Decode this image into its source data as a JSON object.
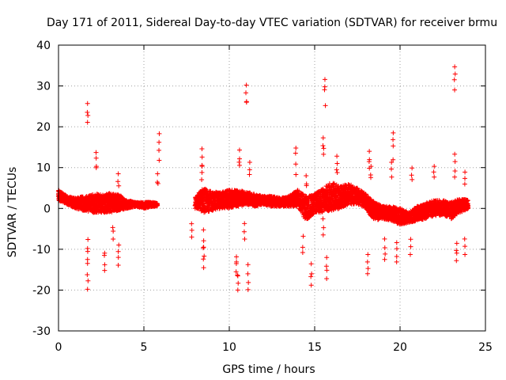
{
  "chart_data": {
    "type": "scatter",
    "title": "Day 171 of 2011, Sidereal Day-to-day VTEC variation (SDTVAR) for receiver brmu",
    "xlabel": "GPS time / hours",
    "ylabel": "SDTVAR / TECUs",
    "xlim": [
      0,
      25
    ],
    "ylim": [
      -30,
      40
    ],
    "xticks": [
      0,
      5,
      10,
      15,
      20,
      25
    ],
    "yticks": [
      -30,
      -20,
      -10,
      0,
      10,
      20,
      30,
      40
    ],
    "xtick_labels": [
      "0",
      "5",
      "10",
      "15",
      "20",
      "25"
    ],
    "ytick_labels": [
      "-30",
      "-20",
      "-10",
      "0",
      "10",
      "20",
      "30",
      "40"
    ],
    "grid": true,
    "marker": "+",
    "color": "#ff0000",
    "series": [
      {
        "name": "SDTVAR",
        "band": [
          [
            0.0,
            2.0,
            4.5
          ],
          [
            0.5,
            1.0,
            3.0
          ],
          [
            1.0,
            0.0,
            2.5
          ],
          [
            1.5,
            -0.5,
            3.0
          ],
          [
            2.0,
            -1.0,
            3.5
          ],
          [
            2.5,
            -1.0,
            3.5
          ],
          [
            3.0,
            -1.0,
            3.8
          ],
          [
            3.5,
            -0.5,
            3.5
          ],
          [
            4.0,
            0.0,
            2.0
          ],
          [
            4.5,
            0.5,
            1.5
          ],
          [
            5.0,
            0.0,
            1.5
          ],
          [
            5.5,
            0.5,
            1.5
          ],
          [
            5.8,
            0.5,
            1.2
          ],
          [
            8.0,
            0.0,
            3.0
          ],
          [
            8.5,
            -1.0,
            5.0
          ],
          [
            9.0,
            -0.5,
            4.0
          ],
          [
            9.5,
            0.0,
            4.0
          ],
          [
            10.0,
            0.0,
            4.5
          ],
          [
            10.5,
            0.5,
            4.5
          ],
          [
            11.0,
            1.0,
            4.0
          ],
          [
            11.5,
            0.5,
            3.5
          ],
          [
            12.0,
            1.0,
            3.0
          ],
          [
            12.5,
            0.5,
            3.0
          ],
          [
            13.0,
            0.5,
            2.5
          ],
          [
            13.5,
            0.5,
            3.0
          ],
          [
            14.0,
            0.5,
            4.5
          ],
          [
            14.5,
            -3.0,
            3.0
          ],
          [
            15.0,
            -1.0,
            3.5
          ],
          [
            15.5,
            -1.0,
            5.0
          ],
          [
            16.0,
            -0.5,
            6.5
          ],
          [
            16.5,
            0.0,
            5.5
          ],
          [
            17.0,
            1.0,
            6.0
          ],
          [
            17.5,
            1.0,
            5.0
          ],
          [
            18.0,
            0.0,
            3.5
          ],
          [
            18.5,
            -3.0,
            1.5
          ],
          [
            19.0,
            -2.5,
            0.5
          ],
          [
            19.5,
            -3.0,
            0.5
          ],
          [
            20.0,
            -4.0,
            0.0
          ],
          [
            20.5,
            -3.5,
            -1.0
          ],
          [
            21.0,
            -3.0,
            0.5
          ],
          [
            21.5,
            -2.5,
            1.5
          ],
          [
            22.0,
            -2.0,
            2.0
          ],
          [
            22.5,
            -1.5,
            2.0
          ],
          [
            23.0,
            -2.5,
            1.5
          ],
          [
            23.5,
            -1.0,
            2.5
          ],
          [
            24.0,
            0.0,
            2.0
          ]
        ],
        "outliers": [
          [
            1.7,
            25.7
          ],
          [
            1.7,
            -19.8
          ],
          [
            1.7,
            -12.5
          ],
          [
            2.2,
            13.7
          ],
          [
            2.7,
            -15.2
          ],
          [
            3.5,
            -13.9
          ],
          [
            3.5,
            8.5
          ],
          [
            3.2,
            -7.5
          ],
          [
            5.9,
            18.3
          ],
          [
            5.8,
            8.5
          ],
          [
            8.4,
            14.6
          ],
          [
            8.4,
            8.8
          ],
          [
            8.5,
            -14.5
          ],
          [
            8.5,
            -9.5
          ],
          [
            7.8,
            -7.0
          ],
          [
            10.6,
            14.3
          ],
          [
            10.5,
            -20.0
          ],
          [
            10.4,
            -15.5
          ],
          [
            11.0,
            30.2
          ],
          [
            11.1,
            -19.9
          ],
          [
            11.2,
            11.3
          ],
          [
            10.9,
            -7.5
          ],
          [
            13.9,
            14.8
          ],
          [
            14.5,
            8.0
          ],
          [
            14.8,
            -18.8
          ],
          [
            14.3,
            -10.8
          ],
          [
            15.6,
            31.6
          ],
          [
            15.5,
            17.3
          ],
          [
            15.7,
            -17.2
          ],
          [
            15.5,
            -6.5
          ],
          [
            16.3,
            12.8
          ],
          [
            18.2,
            14.0
          ],
          [
            18.1,
            -16.0
          ],
          [
            18.3,
            10.3
          ],
          [
            19.6,
            18.5
          ],
          [
            19.5,
            11.3
          ],
          [
            19.8,
            -13.1
          ],
          [
            19.1,
            -12.5
          ],
          [
            20.7,
            9.9
          ],
          [
            20.6,
            -11.3
          ],
          [
            22.0,
            10.3
          ],
          [
            23.2,
            34.7
          ],
          [
            23.2,
            13.3
          ],
          [
            23.3,
            -12.8
          ],
          [
            23.8,
            8.9
          ],
          [
            23.8,
            -11.3
          ]
        ]
      }
    ]
  }
}
